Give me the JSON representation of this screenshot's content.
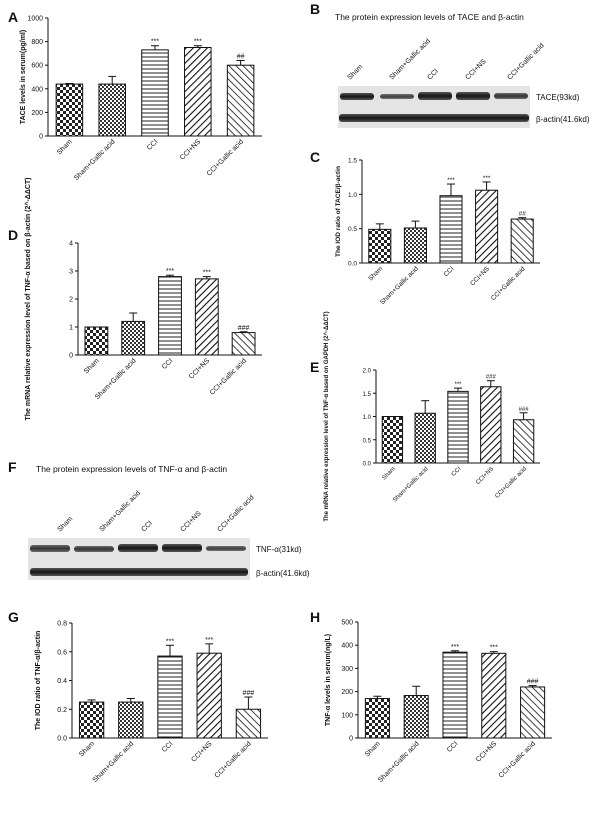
{
  "panel_labels": {
    "A": "A",
    "B": "B",
    "C": "C",
    "D": "D",
    "E": "E",
    "F": "F",
    "G": "G",
    "H": "H"
  },
  "blot_B": {
    "title": "The protein expression levels of TACE and β-actin",
    "lanes": [
      "Sham",
      "Sham+Gallic acid",
      "CCI",
      "CCI+NS",
      "CCI+Gallic acid"
    ],
    "bands": [
      "TACE(93kd)",
      "β-actin(41.6kd)"
    ]
  },
  "blot_F": {
    "title": "The protein expression levels of TNF-α and β-actin",
    "lanes": [
      "Sham",
      "Sham+Gallic acid",
      "CCI",
      "CCI+NS",
      "CCI+Gallic acid"
    ],
    "bands": [
      "TNF-α(31kd)",
      "β-actin(41.6kd)"
    ]
  },
  "chart_data": [
    {
      "id": "A",
      "type": "bar",
      "categories": [
        "Sham",
        "Sham+Gallic acid",
        "CCI",
        "CCI+NS",
        "CCI+Gallic acid"
      ],
      "values": [
        440,
        440,
        730,
        750,
        600
      ],
      "errors": [
        5,
        65,
        35,
        15,
        40
      ],
      "annotations": [
        "",
        "",
        "***",
        "***",
        "##"
      ],
      "ylabel": "TACE levels in serum(pg/ml)",
      "ylim": [
        0,
        1000
      ],
      "yticks": [
        "0",
        "200",
        "400",
        "600",
        "800",
        "1000"
      ]
    },
    {
      "id": "C",
      "type": "bar",
      "categories": [
        "Sham",
        "Sham+Gallic acid",
        "CCI",
        "CCI+NS",
        "CCI+Gallic acid"
      ],
      "values": [
        0.49,
        0.51,
        0.98,
        1.06,
        0.64
      ],
      "errors": [
        0.08,
        0.1,
        0.17,
        0.12,
        0.02
      ],
      "annotations": [
        "",
        "",
        "***",
        "***",
        "##"
      ],
      "ylabel": "The IOD ratio of TACE/β-actin",
      "ylim": [
        0,
        1.5
      ],
      "yticks": [
        "0.0",
        "0.5",
        "1.0",
        "1.5"
      ]
    },
    {
      "id": "D",
      "type": "bar",
      "categories": [
        "Sham",
        "Sham+Gallic acid",
        "CCI",
        "CCI+NS",
        "CCI+Gallic acid"
      ],
      "values": [
        1.0,
        1.2,
        2.8,
        2.72,
        0.8
      ],
      "errors": [
        0,
        0.3,
        0.05,
        0.08,
        0.03
      ],
      "annotations": [
        "",
        "",
        "***",
        "***",
        "###"
      ],
      "ylabel": "The mRNA relative expression level of TNF-α based on β-actin (2^-ΔΔCT)",
      "ylim": [
        0,
        4
      ],
      "yticks": [
        "0",
        "1",
        "2",
        "3",
        "4"
      ]
    },
    {
      "id": "E",
      "type": "bar",
      "categories": [
        "Sham",
        "Sham+Gallic acid",
        "CCI",
        "CCI+NS",
        "CCI+Gallic acid"
      ],
      "values": [
        1.0,
        1.07,
        1.54,
        1.64,
        0.93
      ],
      "errors": [
        0,
        0.27,
        0.07,
        0.13,
        0.15
      ],
      "annotations": [
        "",
        "",
        "***",
        "###",
        "###"
      ],
      "ylabel": "The mRNA relative expression level of TNF-α based on GAPDH (2^-ΔΔCT)",
      "ylim": [
        0,
        2.0
      ],
      "yticks": [
        "0.0",
        "0.5",
        "1.0",
        "1.5",
        "2.0"
      ]
    },
    {
      "id": "G",
      "type": "bar",
      "categories": [
        "Sham",
        "Sham+Gallic acid",
        "CCI",
        "CCI+NS",
        "CCI+Gallic acid"
      ],
      "values": [
        0.25,
        0.25,
        0.57,
        0.59,
        0.2
      ],
      "errors": [
        0.015,
        0.025,
        0.075,
        0.065,
        0.085
      ],
      "annotations": [
        "",
        "",
        "***",
        "***",
        "###"
      ],
      "ylabel": "The IOD ratio of TNF-α/β-actin",
      "ylim": [
        0,
        0.8
      ],
      "yticks": [
        "0.0",
        "0.2",
        "0.4",
        "0.6",
        "0.8"
      ]
    },
    {
      "id": "H",
      "type": "bar",
      "categories": [
        "Sham",
        "Sham+Gallic acid",
        "CCI",
        "CCI+NS",
        "CCI+Gallic acid"
      ],
      "values": [
        170,
        183,
        370,
        365,
        220
      ],
      "errors": [
        10,
        40,
        6,
        7,
        6
      ],
      "annotations": [
        "",
        "",
        "***",
        "***",
        "###"
      ],
      "ylabel": "TNF-α levels in serum(ng/L)",
      "ylim": [
        0,
        500
      ],
      "yticks": [
        "0",
        "100",
        "200",
        "300",
        "400",
        "500"
      ]
    }
  ]
}
